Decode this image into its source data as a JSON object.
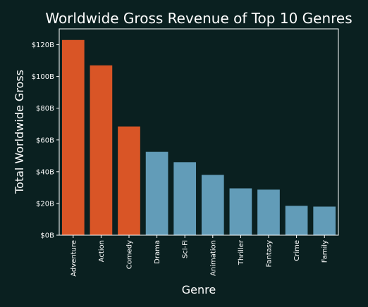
{
  "chart_data": {
    "type": "bar",
    "title": "Worldwide Gross Revenue of Top 10 Genres",
    "xlabel": "Genre",
    "ylabel": "Total Worldwide Gross",
    "categories": [
      "Adventure",
      "Action",
      "Comedy",
      "Drama",
      "Sci-Fi",
      "Animation",
      "Thriller",
      "Fantasy",
      "Crime",
      "Family"
    ],
    "values": [
      123,
      107,
      68.5,
      52.5,
      46,
      38,
      29.5,
      28.7,
      18.5,
      18
    ],
    "value_unit": "billion USD",
    "ylim": [
      0,
      130
    ],
    "yticks": [
      0,
      20,
      40,
      60,
      80,
      100,
      120
    ],
    "ytick_labels": [
      "$0B",
      "$20B",
      "$40B",
      "$60B",
      "$80B",
      "$100B",
      "$120B"
    ],
    "grid": false,
    "legend": "none",
    "highlight_count": 3,
    "colors": {
      "background": "#0a2020",
      "highlight": "#d95526",
      "normal": "#629cb8",
      "text": "#ffffff",
      "axis": "#ffffff"
    }
  }
}
